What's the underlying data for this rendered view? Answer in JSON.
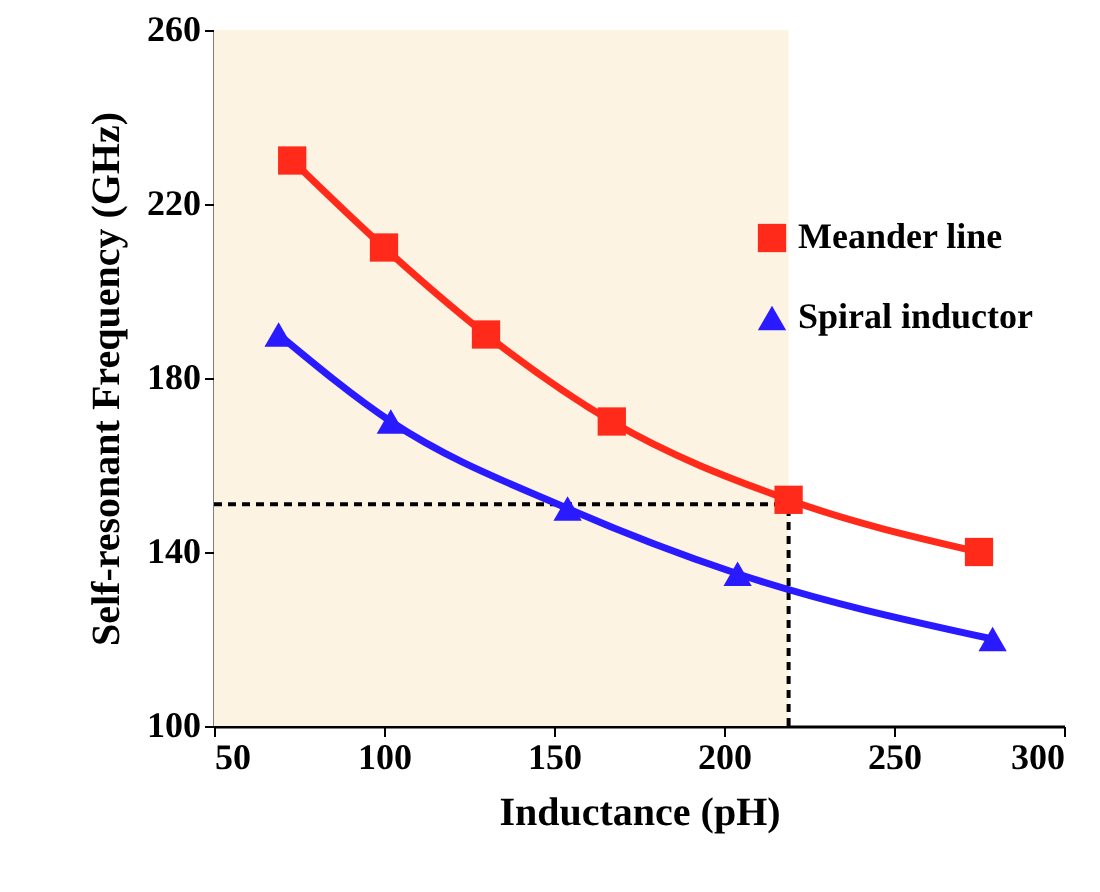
{
  "chart_data": {
    "type": "line",
    "xlabel": "Inductance (pH)",
    "ylabel": "Self-resonant  Frequency (GHz)",
    "xlim": [
      50,
      300
    ],
    "xticks": [
      50,
      100,
      150,
      200,
      250,
      300
    ],
    "ylim": [
      100,
      260
    ],
    "yticks": [
      100,
      140,
      180,
      220,
      260
    ],
    "series": [
      {
        "name": "Meander line",
        "color": "#ff2a1a",
        "marker": "square",
        "x": [
          73,
          100,
          130,
          167,
          219,
          275
        ],
        "values": [
          230,
          210,
          190,
          170,
          152,
          140
        ]
      },
      {
        "name": "Spiral inductor",
        "color": "#2a1aff",
        "marker": "triangle",
        "x": [
          69,
          102,
          154,
          204,
          279
        ],
        "values": [
          190,
          170,
          150,
          135,
          120
        ]
      }
    ],
    "bands": [
      {
        "axis": "x",
        "from": 50,
        "to": 219,
        "color": "#fdf3e3"
      }
    ],
    "ref_lines": [
      {
        "axis": "y",
        "value": 151,
        "color": "#000000",
        "line_style": "dashed"
      },
      {
        "axis": "x",
        "value": 219,
        "color": "#000000",
        "line_style": "dashed"
      }
    ],
    "legend": "top right",
    "grid": false
  }
}
